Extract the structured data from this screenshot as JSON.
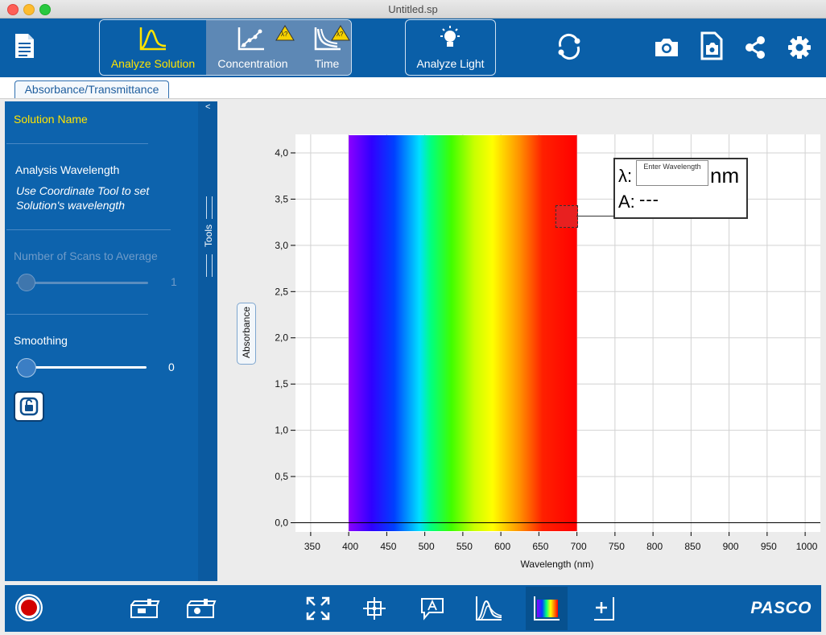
{
  "window": {
    "title": "Untitled.sp"
  },
  "toolbar": {
    "modes": [
      {
        "label": "Analyze Solution",
        "active": true
      },
      {
        "label": "Concentration",
        "warning": "λ?"
      },
      {
        "label": "Time",
        "warning": "λ?"
      }
    ],
    "analyze_light_label": "Analyze Light",
    "icons": [
      "document-icon",
      "sync-icon",
      "camera-icon",
      "page-camera-icon",
      "share-icon",
      "gear-icon"
    ]
  },
  "tabs": [
    {
      "label": "Absorbance/Transmittance"
    }
  ],
  "panel": {
    "collapse_label": "<",
    "solution_name": "Solution Name",
    "analysis_wavelength_title": "Analysis Wavelength",
    "analysis_wavelength_hint": "Use Coordinate Tool to set Solution's wavelength",
    "scans_label": "Number of Scans to Average",
    "scans_value": "1",
    "smoothing_label": "Smoothing",
    "smoothing_value": "0",
    "tools_label": "Tools"
  },
  "graph": {
    "y_axis_label": "Absorbance",
    "x_axis_label": "Wavelength (nm)",
    "coordinate_box": {
      "lambda_label": "λ:",
      "input_placeholder": "Enter Wavelength",
      "unit": "nm",
      "absorbance_label": "A:",
      "absorbance_value": "---"
    }
  },
  "chart_data": {
    "type": "line",
    "xlabel": "Wavelength (nm)",
    "ylabel": "Absorbance",
    "xlim": [
      330,
      1020
    ],
    "ylim": [
      -0.1,
      4.2
    ],
    "x_ticks": [
      350,
      400,
      450,
      500,
      550,
      600,
      650,
      700,
      750,
      800,
      850,
      900,
      950,
      1000
    ],
    "y_ticks": [
      0.0,
      0.5,
      1.0,
      1.5,
      2.0,
      2.5,
      3.0,
      3.5,
      4.0
    ],
    "y_tick_labels": [
      "0,0",
      "0,5",
      "1,0",
      "1,5",
      "2,0",
      "2,5",
      "3,0",
      "3,5",
      "4,0"
    ],
    "spectrum_band": [
      400,
      700
    ],
    "series": [],
    "grid": true
  },
  "bottom_bar": {
    "brand": "PASCO",
    "icons": [
      "record-button-icon",
      "spectrometer-cuvette-icon",
      "spectrometer-light-icon",
      "fullscreen-icon",
      "coordinate-tool-icon",
      "annotation-icon",
      "peak-tool-icon",
      "spectrum-icon",
      "add-run-icon"
    ]
  }
}
